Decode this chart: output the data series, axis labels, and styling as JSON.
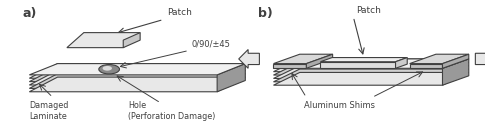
{
  "fig_width": 5.0,
  "fig_height": 1.25,
  "dpi": 100,
  "bg_color": "#ffffff",
  "label_a": "a)",
  "label_b": "b)",
  "line_color": "#404040",
  "panel_a": {
    "patch_label": "Patch",
    "hole_label": "0/90/±45",
    "damaged_label": "Damaged\nLaminate",
    "hole_damage_label": "Hole\n(Perforation Damage)"
  },
  "panel_b": {
    "patch_label": "Patch",
    "shim_label": "Aluminum Shims"
  }
}
